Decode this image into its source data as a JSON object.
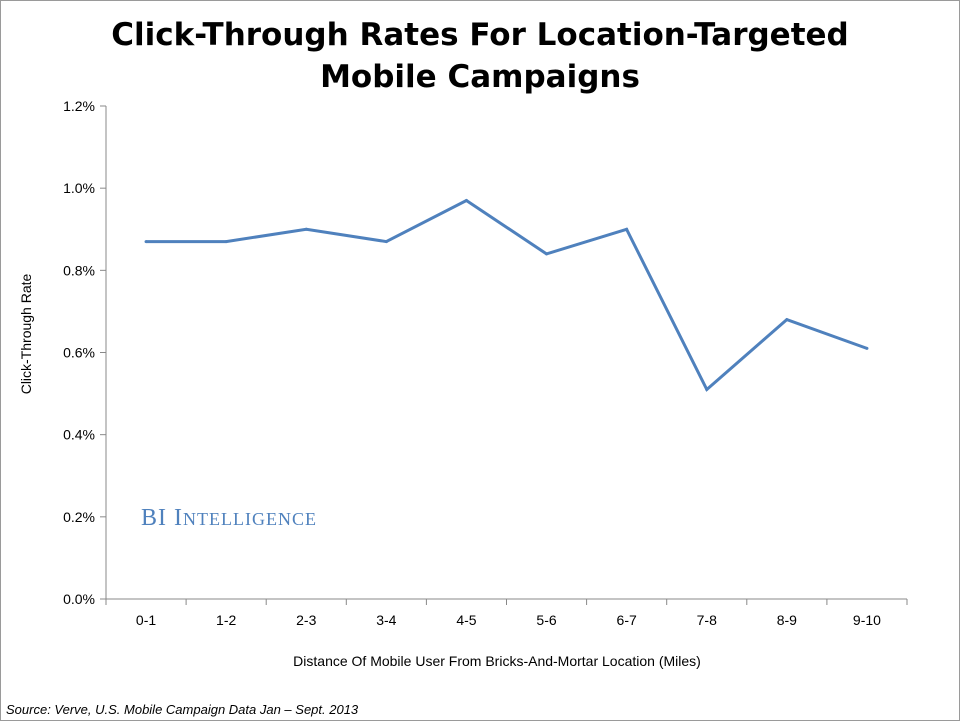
{
  "chart_data": {
    "type": "line",
    "title_lines": [
      "Click-Through Rates For Location-Targeted",
      "Mobile Campaigns"
    ],
    "xlabel": "Distance Of Mobile User From Bricks-And-Mortar Location (Miles)",
    "ylabel": "Click-Through Rate",
    "categories": [
      "0-1",
      "1-2",
      "2-3",
      "3-4",
      "4-5",
      "5-6",
      "6-7",
      "7-8",
      "8-9",
      "9-10"
    ],
    "series": [
      {
        "values": [
          0.87,
          0.87,
          0.9,
          0.87,
          0.97,
          0.84,
          0.9,
          0.51,
          0.68,
          0.61
        ]
      }
    ],
    "yticks": [
      "0.0%",
      "0.2%",
      "0.4%",
      "0.6%",
      "0.8%",
      "1.0%",
      "1.2%"
    ],
    "ylim": [
      0,
      1.2
    ],
    "grid": false,
    "legend": "none",
    "line_color": "#4f81bd"
  },
  "watermark": {
    "main": "BI I",
    "rest": "NTELLIGENCE"
  },
  "source": "Source: Verve, U.S. Mobile Campaign Data Jan – Sept. 2013"
}
